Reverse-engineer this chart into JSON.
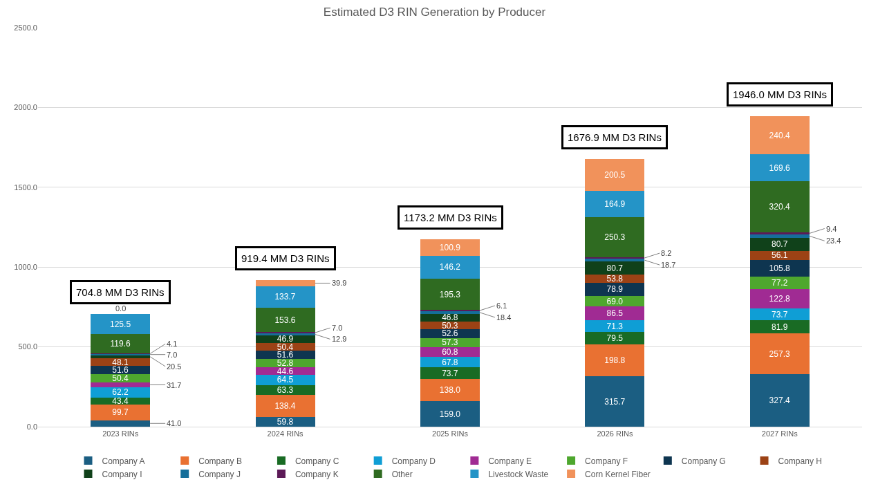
{
  "chart_data": {
    "type": "bar",
    "title": "Estimated D3 RIN Generation by Producer",
    "stacked": true,
    "categories": [
      "2023 RINs",
      "2024 RINs",
      "2025 RINs",
      "2026 RINs",
      "2027 RINs"
    ],
    "series": [
      {
        "name": "Company A",
        "color": "#1b5e82",
        "values": [
          41.0,
          59.8,
          159.0,
          315.7,
          327.4
        ],
        "value_labels": [
          "41.0",
          "59.8",
          "159.0",
          "315.7",
          "327.4"
        ]
      },
      {
        "name": "Company B",
        "color": "#e97132",
        "values": [
          99.7,
          138.4,
          138.0,
          198.8,
          257.3
        ],
        "value_labels": [
          "99.7",
          "138.4",
          "138.0",
          "198.8",
          "257.3"
        ]
      },
      {
        "name": "Company C",
        "color": "#196b24",
        "values": [
          43.4,
          63.3,
          73.7,
          79.5,
          81.9
        ],
        "value_labels": [
          "43.4",
          "63.3",
          "73.7",
          "79.5",
          "81.9"
        ]
      },
      {
        "name": "Company D",
        "color": "#0f9ed5",
        "values": [
          62.2,
          64.5,
          67.8,
          71.3,
          73.7
        ],
        "value_labels": [
          "62.2",
          "64.5",
          "67.8",
          "71.3",
          "73.7"
        ]
      },
      {
        "name": "Company E",
        "color": "#a02b93",
        "values": [
          31.7,
          44.6,
          60.8,
          86.5,
          122.8
        ],
        "value_labels": [
          "31.7",
          "44.6",
          "60.8",
          "86.5",
          "122.8"
        ]
      },
      {
        "name": "Company F",
        "color": "#4ea72e",
        "values": [
          50.4,
          52.8,
          57.3,
          69.0,
          77.2
        ],
        "value_labels": [
          "50.4",
          "52.8",
          "57.3",
          "69.0",
          "77.2"
        ]
      },
      {
        "name": "Company G",
        "color": "#0e3550",
        "values": [
          51.6,
          51.6,
          52.6,
          78.9,
          105.8
        ],
        "value_labels": [
          "51.6",
          "51.6",
          "52.6",
          "78.9",
          "105.8"
        ]
      },
      {
        "name": "Company H",
        "color": "#9c4215",
        "values": [
          48.1,
          50.4,
          50.3,
          53.8,
          56.1
        ],
        "value_labels": [
          "48.1",
          "50.4",
          "50.3",
          "53.8",
          "56.1"
        ]
      },
      {
        "name": "Company I",
        "color": "#10411a",
        "values": [
          20.5,
          46.9,
          46.8,
          80.7,
          80.7
        ],
        "value_labels": [
          "20.5",
          "46.9",
          "46.8",
          "80.7",
          "80.7"
        ]
      },
      {
        "name": "Company J",
        "color": "#156e9a",
        "values": [
          7.0,
          12.9,
          18.4,
          18.7,
          23.4
        ],
        "value_labels": [
          "7.0",
          "12.9",
          "18.4",
          "18.7",
          "23.4"
        ]
      },
      {
        "name": "Company K",
        "color": "#5c1a57",
        "values": [
          4.1,
          7.0,
          6.1,
          8.2,
          9.4
        ],
        "value_labels": [
          "4.1",
          "7.0",
          "6.1",
          "8.2",
          "9.4"
        ]
      },
      {
        "name": "Other",
        "color": "#2f6b21",
        "values": [
          119.6,
          153.6,
          195.3,
          250.3,
          320.4
        ],
        "value_labels": [
          "119.6",
          "153.6",
          "195.3",
          "250.3",
          "320.4"
        ]
      },
      {
        "name": "Livestock Waste",
        "color": "#2494c7",
        "values": [
          125.5,
          133.7,
          146.2,
          164.9,
          169.6
        ],
        "value_labels": [
          "125.5",
          "133.7",
          "146.2",
          "164.9",
          "169.6"
        ]
      },
      {
        "name": "Corn Kernel Fiber",
        "color": "#f1925b",
        "values": [
          0.0,
          39.9,
          100.9,
          200.5,
          240.4
        ],
        "value_labels": [
          "0.0",
          "39.9",
          "100.9",
          "200.5",
          "240.4"
        ]
      }
    ],
    "totals": [
      "704.8 MM D3 RINs",
      "919.4 MM D3 RINs",
      "1173.2 MM D3 RINs",
      "1676.9 MM D3 RINs",
      "1946.0 MM D3 RINs"
    ],
    "ylim": [
      0,
      2500
    ],
    "yticks": [
      {
        "value": 0,
        "label": "0.0"
      },
      {
        "value": 500,
        "label": "500.0"
      },
      {
        "value": 1000,
        "label": "1000.0"
      },
      {
        "value": 1500,
        "label": "1500.0"
      },
      {
        "value": 2000,
        "label": "2000.0"
      },
      {
        "value": 2500,
        "label": "2500.0"
      }
    ],
    "grid": "y",
    "legend": "bottom"
  }
}
